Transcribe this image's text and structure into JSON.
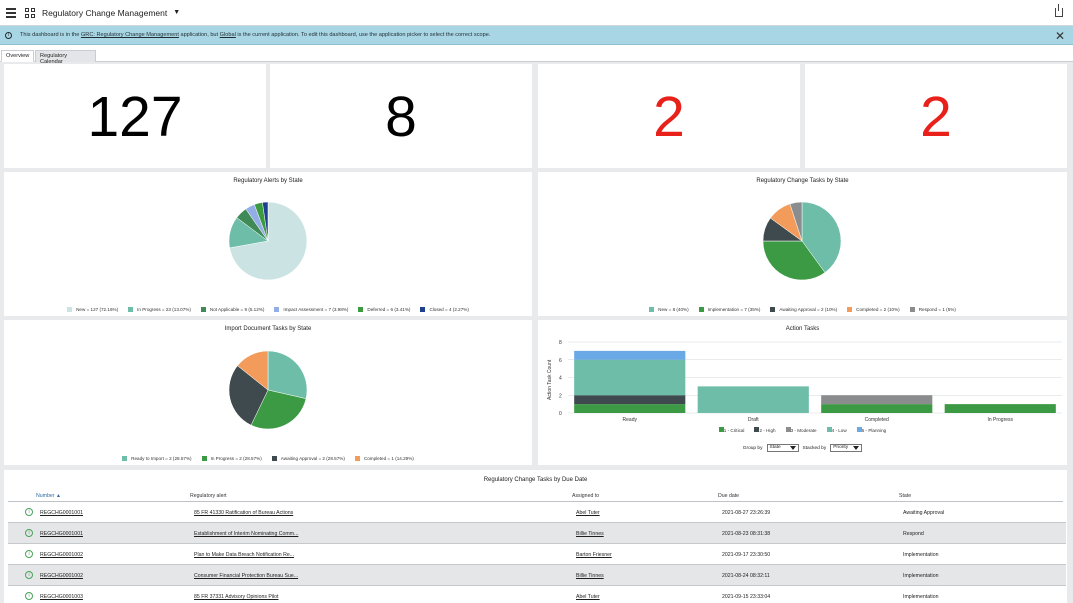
{
  "header": {
    "title": "Regulatory Change Management",
    "caret": "▼",
    "menu_icon": "hamburger-icon",
    "apps_icon": "grid-icon",
    "share_icon": "share-icon"
  },
  "banner": {
    "msg_prefix": "This dashboard is in the ",
    "app_link": "GRC: Regulatory Change Management",
    "msg_middle": " application, but ",
    "scope_link": "Global",
    "msg_suffix": " is the current application. To edit this dashboard, use the application picker to select the correct scope.",
    "close": "✕",
    "info": "i"
  },
  "tabs": [
    {
      "label": "Overview"
    },
    {
      "label": "Regulatory Calendar"
    }
  ],
  "scorecards": [
    {
      "value": "127",
      "color": "#000000"
    },
    {
      "value": "8",
      "color": "#000000"
    },
    {
      "value": "2",
      "color": "#e8211b"
    },
    {
      "value": "2",
      "color": "#e8211b"
    }
  ],
  "alerts_chart": {
    "title": "Regulatory Alerts by State",
    "legend": [
      {
        "label": "New = 127 (72.16%)",
        "color": "#cce3e4"
      },
      {
        "label": "In Progress = 23 (13.07%)",
        "color": "#6dbda8"
      },
      {
        "label": "Not Applicable = 9 (5.12%)",
        "color": "#3f8a57"
      },
      {
        "label": "Impact Assessment = 7 (3.98%)",
        "color": "#93aee6"
      },
      {
        "label": "Deferred = 6 (3.41%)",
        "color": "#3c9a3f"
      },
      {
        "label": "Closed = 4 (2.27%)",
        "color": "#1f3f8f"
      }
    ]
  },
  "tasks_chart": {
    "title": "Regulatory Change Tasks by State",
    "legend": [
      {
        "label": "New = 8 (40%)",
        "color": "#6dbda8"
      },
      {
        "label": "Implementation = 7 (35%)",
        "color": "#3c9a44"
      },
      {
        "label": "Awaiting Approval = 2 (10%)",
        "color": "#3e4a4d"
      },
      {
        "label": "Completed = 2 (10%)",
        "color": "#f39b5a"
      },
      {
        "label": "Respond = 1 (5%)",
        "color": "#8a8c8d"
      }
    ]
  },
  "import_chart": {
    "title": "Import Document Tasks by State",
    "legend": [
      {
        "label": "Ready to Import = 2 (28.57%)",
        "color": "#6dbda8"
      },
      {
        "label": "In Progress = 2 (28.57%)",
        "color": "#3c9a44"
      },
      {
        "label": "Awaiting Approval = 2 (28.57%)",
        "color": "#3e4a4d"
      },
      {
        "label": "Completed = 1 (14.29%)",
        "color": "#f39b5a"
      }
    ]
  },
  "action_chart": {
    "title": "Action Tasks",
    "ylabel": "Action Task Count",
    "yticks": [
      "8",
      "6",
      "4",
      "2",
      "0"
    ],
    "legend": [
      {
        "label": "1 - Critical",
        "color": "#3c9a44"
      },
      {
        "label": "2 - High",
        "color": "#3e4a4d"
      },
      {
        "label": "3 - Moderate",
        "color": "#8a8c8d"
      },
      {
        "label": "4 - Low",
        "color": "#6dbda8"
      },
      {
        "label": "5 - Planning",
        "color": "#6aa8e6"
      }
    ],
    "group_by_label": "Group by",
    "group_by_value": "State",
    "stacked_by_label": "Stacked by",
    "stacked_by_value": "Priority"
  },
  "chart_data": [
    {
      "type": "pie",
      "title": "Regulatory Alerts by State",
      "labels": [
        "New",
        "In Progress",
        "Not Applicable",
        "Impact Assessment",
        "Deferred",
        "Closed"
      ],
      "values": [
        127,
        23,
        9,
        7,
        6,
        4
      ]
    },
    {
      "type": "pie",
      "title": "Regulatory Change Tasks by State",
      "labels": [
        "New",
        "Implementation",
        "Awaiting Approval",
        "Completed",
        "Respond"
      ],
      "values": [
        8,
        7,
        2,
        2,
        1
      ]
    },
    {
      "type": "pie",
      "title": "Import Document Tasks by State",
      "labels": [
        "Ready to Import",
        "In Progress",
        "Awaiting Approval",
        "Completed"
      ],
      "values": [
        2,
        2,
        2,
        1
      ]
    },
    {
      "type": "bar",
      "title": "Action Tasks",
      "stacked": true,
      "categories": [
        "Ready",
        "Draft",
        "Completed",
        "In Progress"
      ],
      "ylabel": "Action Task Count",
      "ylim": [
        0,
        8
      ],
      "series": [
        {
          "name": "1 - Critical",
          "values": [
            1,
            0,
            1,
            1
          ]
        },
        {
          "name": "2 - High",
          "values": [
            1,
            0,
            0,
            0
          ]
        },
        {
          "name": "3 - Moderate",
          "values": [
            0,
            0,
            1,
            0
          ]
        },
        {
          "name": "4 - Low",
          "values": [
            4,
            3,
            0,
            0
          ]
        },
        {
          "name": "5 - Planning",
          "values": [
            1,
            0,
            0,
            0
          ]
        }
      ]
    }
  ],
  "table": {
    "title": "Regulatory Change Tasks by Due Date",
    "columns": [
      "Number ▲",
      "Regulatory alert",
      "Assigned to",
      "Due date",
      "State"
    ],
    "rows": [
      {
        "number": "REGCHG0001001",
        "alert": "85 FR 41330 Ratification of Bureau Actions",
        "assigned": "Abel Tuter",
        "due": "2021-08-27 23:26:39",
        "state": "Awaiting Approval"
      },
      {
        "number": "REGCHG0001001",
        "alert": "Establishment of Interim Nominating Comm...",
        "assigned": "Billie Tinnes",
        "due": "2021-08-23 08:31:38",
        "state": "Respond"
      },
      {
        "number": "REGCHG0001002",
        "alert": "Plan to Make Data Breach Notification Re...",
        "assigned": "Barton Friesner",
        "due": "2021-09-17 23:30:50",
        "state": "Implementation"
      },
      {
        "number": "REGCHG0001002",
        "alert": "Consumer Financial Protection Bureau Sue...",
        "assigned": "Billie Tinnes",
        "due": "2021-08-24 08:32:11",
        "state": "Implementation"
      },
      {
        "number": "REGCHG0001003",
        "alert": "85 FR 37331 Advisory Opinions Pilot",
        "assigned": "Abel Tuter",
        "due": "2021-09-15 23:33:04",
        "state": "Implementation"
      }
    ]
  }
}
